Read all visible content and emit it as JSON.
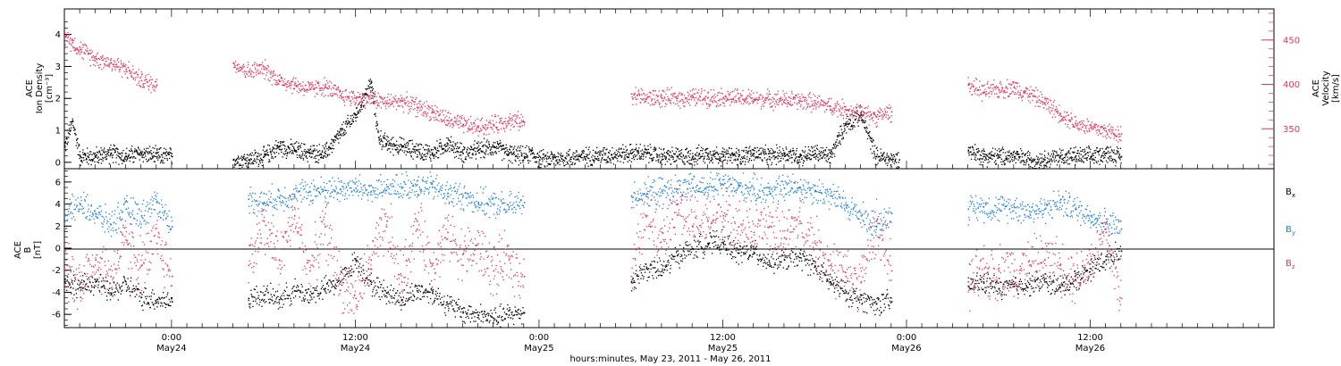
{
  "footer_label": "hours:minutes, May 23, 2011 - May 26, 2011",
  "time_ticks": [
    {
      "hour": 24,
      "time": "0:00",
      "date": "May24"
    },
    {
      "hour": 36,
      "time": "12:00",
      "date": "May24"
    },
    {
      "hour": 48,
      "time": "0:00",
      "date": "May25"
    },
    {
      "hour": 60,
      "time": "12:00",
      "date": "May25"
    },
    {
      "hour": 72,
      "time": "0:00",
      "date": "May26"
    },
    {
      "hour": 84,
      "time": "12:00",
      "date": "May26"
    }
  ],
  "colors": {
    "black": "#000000",
    "pink": "#e8335c",
    "blue": "#1a7fe0"
  },
  "chart_data": [
    {
      "type": "scatter",
      "panel": "top",
      "xlim_hours": [
        17,
        96
      ],
      "left_axis": {
        "label_lines": [
          "ACE",
          "Ion Density"
        ],
        "unit": "[cm⁻³]",
        "ylim": [
          -0.2,
          4.8
        ],
        "ticks": [
          0,
          1,
          2,
          3,
          4
        ]
      },
      "right_axis": {
        "label_lines": [
          "ACE",
          "Velocity"
        ],
        "unit": "[km/s]",
        "ylim": [
          305,
          485
        ],
        "ticks": [
          350,
          400,
          450
        ]
      },
      "series": [
        {
          "color": "black",
          "axis": "left",
          "x": [
            17.0,
            17.5,
            18.0,
            19.0,
            20.0,
            21.0,
            22.0,
            23.0,
            24.0,
            25.0,
            26.0,
            27.0,
            28.0,
            29.0,
            30.0,
            31.0,
            32.0,
            33.0,
            34.0,
            35.0,
            36.0,
            37.0,
            37.5,
            38.0,
            39.0,
            40.0,
            41.0,
            42.0,
            43.0,
            44.0,
            45.0,
            46.0,
            47.0,
            47.5,
            48.0,
            54.0,
            55.0,
            56.0,
            57.0,
            58.0,
            59.0,
            60.0,
            61.0,
            62.0,
            63.0,
            64.0,
            65.0,
            66.0,
            67.0,
            68.0,
            69.0,
            70.0,
            71.0,
            71.5,
            72.0,
            76.0,
            77.0,
            78.0,
            79.0,
            80.0,
            81.0,
            82.0,
            83.0,
            84.0,
            85.0,
            86.0
          ],
          "y": [
            0.5,
            1.3,
            0.2,
            0.2,
            0.3,
            0.2,
            0.3,
            0.2,
            0.2,
            null,
            null,
            null,
            0.1,
            0.1,
            0.2,
            0.5,
            0.4,
            0.3,
            0.3,
            0.9,
            1.5,
            2.5,
            0.8,
            0.6,
            0.5,
            0.4,
            0.3,
            0.6,
            0.3,
            0.4,
            0.5,
            0.3,
            0.2,
            0.3,
            0.1,
            0.3,
            0.3,
            0.2,
            0.2,
            0.2,
            0.3,
            0.2,
            0.2,
            0.3,
            0.2,
            0.3,
            0.2,
            0.3,
            0.2,
            1.2,
            1.5,
            0.2,
            0.1,
            0.1,
            null,
            0.4,
            0.2,
            0.2,
            0.2,
            0.1,
            0.1,
            0.2,
            0.2,
            0.2,
            0.3,
            0.2
          ]
        },
        {
          "color": "pink",
          "axis": "right",
          "x": [
            17.0,
            17.5,
            18.0,
            19.0,
            20.0,
            21.0,
            22.0,
            23.0,
            24.0,
            25.0,
            26.0,
            27.0,
            28.0,
            29.0,
            30.0,
            31.0,
            32.0,
            33.0,
            34.0,
            35.0,
            36.0,
            37.0,
            38.0,
            39.0,
            40.0,
            41.0,
            42.0,
            43.0,
            44.0,
            45.0,
            46.0,
            47.0,
            48.0,
            54.0,
            55.0,
            56.0,
            57.0,
            58.0,
            59.0,
            60.0,
            61.0,
            62.0,
            63.0,
            64.0,
            65.0,
            66.0,
            67.0,
            68.0,
            69.0,
            70.0,
            71.0,
            72.0,
            76.0,
            77.0,
            78.0,
            79.0,
            80.0,
            81.0,
            82.0,
            83.0,
            84.0,
            85.0,
            86.0
          ],
          "y": [
            455,
            448,
            440,
            430,
            425,
            418,
            405,
            400,
            null,
            null,
            null,
            null,
            425,
            415,
            418,
            405,
            400,
            395,
            398,
            388,
            385,
            385,
            380,
            382,
            375,
            370,
            360,
            355,
            352,
            355,
            360,
            358,
            null,
            390,
            385,
            385,
            385,
            386,
            386,
            386,
            385,
            384,
            384,
            383,
            382,
            380,
            376,
            372,
            368,
            364,
            370,
            null,
            400,
            392,
            395,
            397,
            390,
            380,
            368,
            357,
            352,
            348,
            345
          ]
        }
      ]
    },
    {
      "type": "scatter",
      "panel": "bottom",
      "xlim_hours": [
        17,
        96
      ],
      "left_axis": {
        "label_lines": [
          "ACE",
          "B"
        ],
        "unit": "[nT]",
        "ylim": [
          -7.2,
          7.2
        ],
        "ticks": [
          -6,
          -4,
          -2,
          0,
          2,
          4,
          6
        ]
      },
      "legend": [
        {
          "label": "B",
          "sub": "x",
          "color": "black"
        },
        {
          "label": "B",
          "sub": "y",
          "color": "blue"
        },
        {
          "label": "B",
          "sub": "z",
          "color": "pink"
        }
      ],
      "series": [
        {
          "color": "black",
          "x": [
            17.0,
            18.0,
            19.0,
            20.0,
            21.0,
            22.0,
            23.0,
            24.0,
            25.0,
            26.0,
            27.0,
            28.0,
            29.0,
            30.0,
            31.0,
            32.0,
            33.0,
            34.0,
            35.0,
            36.0,
            37.0,
            38.0,
            39.0,
            40.0,
            41.0,
            42.0,
            43.0,
            44.0,
            45.0,
            46.0,
            47.0,
            48.0,
            54.0,
            55.0,
            56.0,
            57.0,
            58.0,
            59.0,
            60.0,
            61.0,
            62.0,
            63.0,
            64.0,
            65.0,
            66.0,
            67.0,
            68.0,
            69.0,
            70.0,
            71.0,
            72.0,
            76.0,
            77.0,
            78.0,
            79.0,
            80.0,
            81.0,
            82.0,
            83.0,
            84.0,
            85.0,
            86.0
          ],
          "y": [
            -3.0,
            -3.5,
            -3.0,
            -4.0,
            -3.2,
            -4.4,
            -4.6,
            -4.8,
            null,
            null,
            null,
            null,
            -4.5,
            -4.2,
            -4.6,
            -3.8,
            -4.2,
            -3.6,
            -3.0,
            -1.0,
            -3.2,
            -4.0,
            -4.6,
            -3.8,
            -4.0,
            -5.0,
            -5.8,
            -6.0,
            -6.3,
            -6.0,
            -5.8,
            null,
            -3.0,
            -1.8,
            -2.0,
            -0.6,
            0.0,
            0.5,
            0.5,
            -0.4,
            -0.3,
            -1.2,
            -1.0,
            -0.8,
            -1.6,
            -3.0,
            -4.0,
            -4.6,
            -5.0,
            -4.8,
            null,
            -3.4,
            -3.0,
            -3.6,
            -3.4,
            -3.2,
            -3.0,
            -3.5,
            -2.8,
            -1.8,
            -1.0,
            -0.2
          ]
        },
        {
          "color": "blue",
          "x": [
            17.0,
            18.0,
            19.0,
            20.0,
            21.0,
            22.0,
            23.0,
            24.0,
            25.0,
            26.0,
            27.0,
            28.0,
            29.0,
            30.0,
            31.0,
            32.0,
            33.0,
            34.0,
            35.0,
            36.0,
            37.0,
            38.0,
            39.0,
            40.0,
            41.0,
            42.0,
            43.0,
            44.0,
            45.0,
            46.0,
            47.0,
            48.0,
            54.0,
            55.0,
            56.0,
            57.0,
            58.0,
            59.0,
            60.0,
            61.0,
            62.0,
            63.0,
            64.0,
            65.0,
            66.0,
            67.0,
            68.0,
            69.0,
            70.0,
            71.0,
            72.0,
            76.0,
            77.0,
            78.0,
            79.0,
            80.0,
            81.0,
            82.0,
            83.0,
            84.0,
            85.0,
            86.0
          ],
          "y": [
            3.0,
            4.0,
            3.2,
            2.2,
            3.6,
            3.0,
            4.3,
            2.0,
            null,
            null,
            null,
            null,
            4.5,
            4.2,
            4.6,
            4.8,
            5.2,
            5.3,
            5.4,
            5.5,
            5.2,
            5.3,
            5.6,
            5.8,
            5.6,
            5.0,
            4.8,
            4.2,
            4.0,
            3.8,
            4.2,
            null,
            4.8,
            5.0,
            5.2,
            5.4,
            5.5,
            5.6,
            5.8,
            5.6,
            5.4,
            5.2,
            5.5,
            5.6,
            5.3,
            4.8,
            4.0,
            3.0,
            2.0,
            3.2,
            null,
            3.6,
            3.8,
            3.6,
            3.8,
            3.4,
            3.6,
            4.2,
            3.6,
            3.0,
            2.4,
            1.8
          ]
        },
        {
          "color": "pink",
          "x": [
            17.0,
            18.0,
            19.0,
            20.0,
            21.0,
            22.0,
            23.0,
            24.0,
            25.0,
            26.0,
            27.0,
            28.0,
            29.0,
            30.0,
            31.0,
            32.0,
            33.0,
            34.0,
            35.0,
            36.0,
            37.0,
            38.0,
            39.0,
            40.0,
            41.0,
            42.0,
            43.0,
            44.0,
            45.0,
            46.0,
            47.0,
            48.0,
            54.0,
            55.0,
            56.0,
            57.0,
            58.0,
            59.0,
            60.0,
            61.0,
            62.0,
            63.0,
            64.0,
            65.0,
            66.0,
            67.0,
            68.0,
            69.0,
            70.0,
            71.0,
            72.0,
            76.0,
            77.0,
            78.0,
            79.0,
            80.0,
            81.0,
            82.0,
            83.0,
            84.0,
            85.0,
            86.0
          ],
          "y": [
            -2.0,
            -3.0,
            -1.0,
            -2.5,
            0.8,
            -1.5,
            0.5,
            -2.5,
            null,
            null,
            null,
            null,
            -1.5,
            2.5,
            -1.0,
            3.0,
            -2.0,
            2.0,
            -3.0,
            -4.5,
            -1.0,
            2.0,
            -3.0,
            2.5,
            -1.5,
            1.5,
            -0.5,
            0.0,
            -2.0,
            -1.0,
            -2.5,
            null,
            -2.5,
            3.0,
            1.5,
            4.0,
            2.0,
            2.5,
            3.0,
            2.0,
            1.5,
            2.0,
            1.0,
            2.5,
            0.5,
            -1.5,
            -2.5,
            -3.0,
            2.5,
            -2.0,
            null,
            -3.0,
            -2.5,
            -2.0,
            -2.0,
            -1.5,
            -1.0,
            -1.5,
            -2.5,
            -1.0,
            1.5,
            -4.5
          ]
        }
      ]
    }
  ]
}
